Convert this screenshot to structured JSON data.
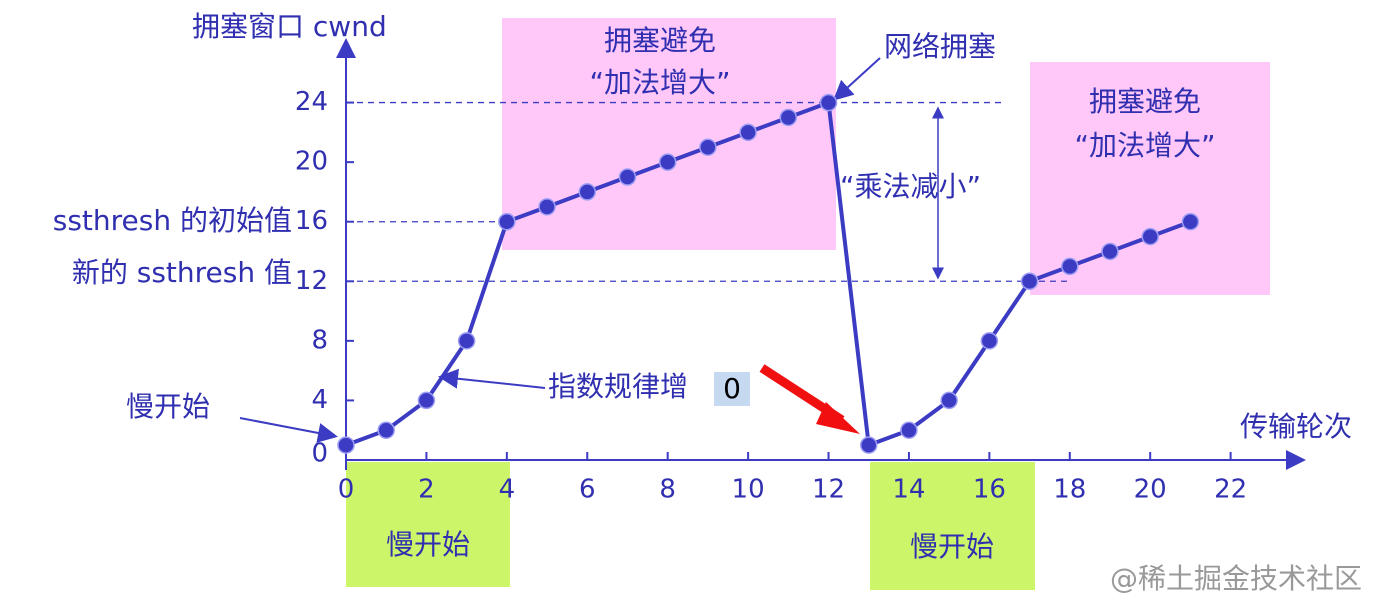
{
  "chart_data": {
    "type": "line",
    "y_axis_title": "拥塞窗口 cwnd",
    "x_axis_title": "传输轮次",
    "x": [
      0,
      1,
      2,
      3,
      4,
      5,
      6,
      7,
      8,
      9,
      10,
      11,
      12,
      13,
      14,
      15,
      16,
      17,
      18,
      19,
      20,
      21
    ],
    "series": [
      {
        "color": "#3b3bc4",
        "values": [
          1,
          2,
          4,
          8,
          16,
          17,
          18,
          19,
          20,
          21,
          22,
          23,
          24,
          1,
          2,
          4,
          8,
          12,
          13,
          14,
          15,
          16
        ]
      }
    ],
    "xlim": [
      0,
      23.8
    ],
    "ylim": [
      0,
      28
    ],
    "xticks": [
      0,
      2,
      4,
      6,
      8,
      10,
      12,
      14,
      16,
      18,
      20,
      22
    ],
    "yticks": [
      0,
      4,
      8,
      12,
      16,
      20,
      24
    ],
    "annotations": {
      "ssthresh_initial": "ssthresh 的初始值",
      "ssthresh_new": "新的 ssthresh 值",
      "slow_start_pointer": "慢开始",
      "exponential": "指数规律增",
      "tooltip": "0",
      "congestion_avoidance_1": [
        "拥塞避免",
        "“加法增大”"
      ],
      "congestion_avoidance_2": [
        "拥塞避免",
        "“加法增大”"
      ],
      "network_congestion": "网络拥塞",
      "multiplicative_decrease": "“乘法减小”",
      "slow_start_boxes": [
        "慢开始",
        "慢开始"
      ]
    },
    "watermark": "@稀土掘金技术社区"
  }
}
